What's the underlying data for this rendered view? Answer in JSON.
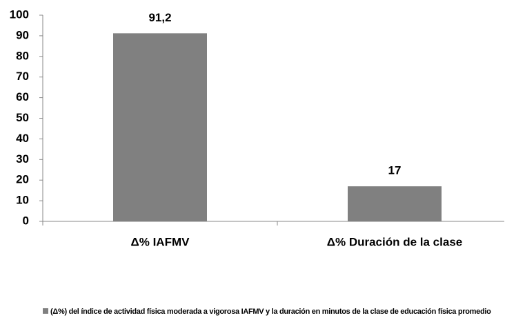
{
  "chart_data": {
    "type": "bar",
    "categories": [
      "Δ% IAFMV",
      "Δ% Duración de la clase"
    ],
    "series": [
      {
        "name": "(Δ%) del índice de actividad física moderada a vigorosa IAFMV y la duración en minutos de la clase de educación física promedio",
        "color": "#808080",
        "values": [
          91.2,
          17
        ],
        "value_labels": [
          "91,2",
          "17"
        ]
      }
    ],
    "ylim": [
      0,
      100
    ],
    "yticks": [
      0,
      10,
      20,
      30,
      40,
      50,
      60,
      70,
      80,
      90,
      100
    ],
    "grid": false,
    "legend": "bottom"
  }
}
